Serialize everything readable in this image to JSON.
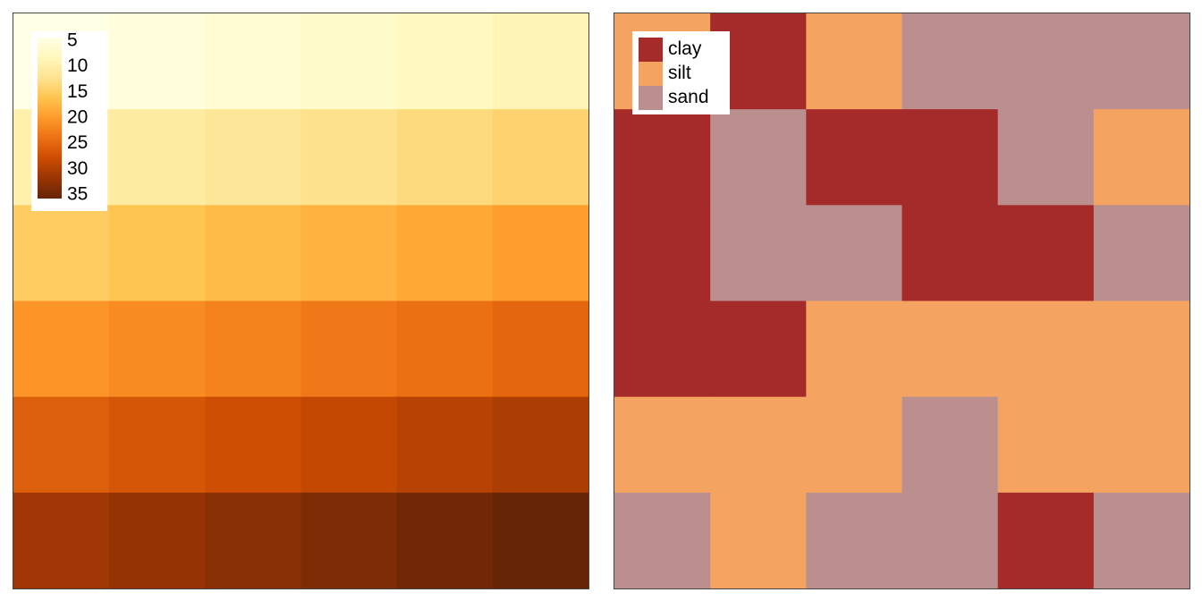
{
  "chart_data": [
    {
      "type": "heatmap",
      "rows": 6,
      "cols": 6,
      "values": [
        [
          1,
          2,
          3,
          4,
          5,
          6
        ],
        [
          7,
          8,
          9,
          10,
          11,
          12
        ],
        [
          13,
          14,
          15,
          16,
          17,
          18
        ],
        [
          19,
          20,
          21,
          22,
          23,
          24
        ],
        [
          25,
          26,
          27,
          28,
          29,
          30
        ],
        [
          31,
          32,
          33,
          34,
          35,
          36
        ]
      ],
      "zlim": [
        1,
        36
      ],
      "legend": {
        "placement": "top-left",
        "ticks": [
          5,
          10,
          15,
          20,
          25,
          30,
          35
        ],
        "tick_labels": [
          "5",
          "10",
          "15",
          "20",
          "25",
          "30",
          "35"
        ]
      },
      "palette": [
        "#ffffe5",
        "#fff7bc",
        "#fee391",
        "#fec44f",
        "#fe9929",
        "#ec7014",
        "#cc4c02",
        "#993404",
        "#662506"
      ]
    },
    {
      "type": "heatmap",
      "rows": 6,
      "cols": 6,
      "categories": [
        "clay",
        "silt",
        "sand"
      ],
      "colors": {
        "clay": "#a52a2a",
        "silt": "#f4a460",
        "sand": "#bc8f8f"
      },
      "values": [
        [
          "silt",
          "clay",
          "silt",
          "sand",
          "sand",
          "sand"
        ],
        [
          "clay",
          "sand",
          "clay",
          "clay",
          "sand",
          "silt"
        ],
        [
          "clay",
          "sand",
          "sand",
          "clay",
          "clay",
          "sand"
        ],
        [
          "clay",
          "clay",
          "silt",
          "silt",
          "silt",
          "silt"
        ],
        [
          "silt",
          "silt",
          "silt",
          "sand",
          "silt",
          "silt"
        ],
        [
          "sand",
          "silt",
          "sand",
          "sand",
          "clay",
          "sand"
        ]
      ],
      "legend": {
        "placement": "top-left",
        "labels": [
          "clay",
          "silt",
          "sand"
        ]
      }
    }
  ]
}
